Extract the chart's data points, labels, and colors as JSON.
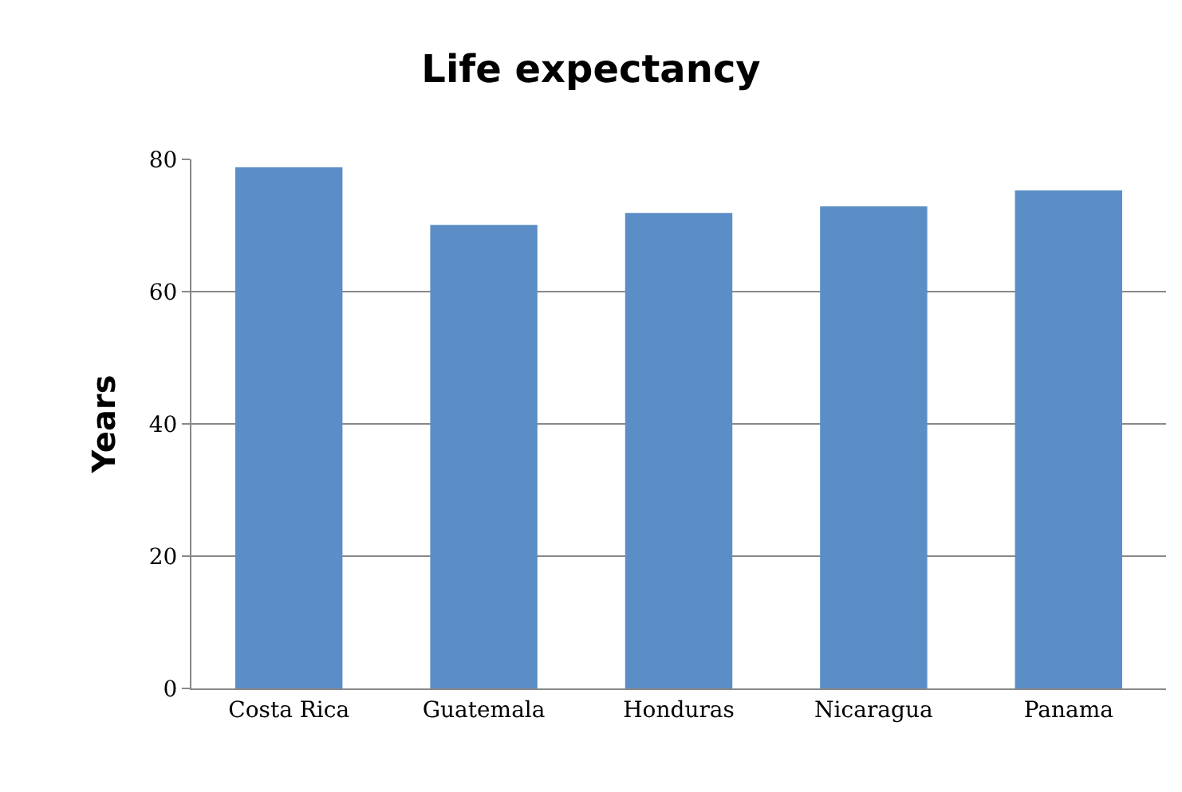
{
  "chart_data": {
    "type": "bar",
    "title": "Life expectancy",
    "ylabel": "Years",
    "categories": [
      "Costa Rica",
      "Guatemala",
      "Honduras",
      "Nicaragua",
      "Panama"
    ],
    "values": [
      78.8,
      70.1,
      71.9,
      72.9,
      75.3
    ],
    "color": "#5b8ec6",
    "ylim": [
      0,
      80
    ],
    "yticks": [
      0,
      20,
      40,
      60,
      80
    ],
    "grid": "y"
  }
}
